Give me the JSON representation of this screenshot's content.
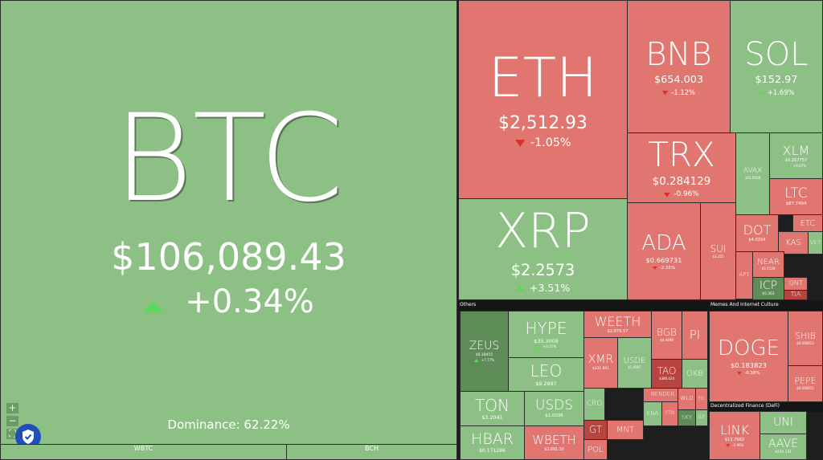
{
  "btc": {
    "name": "BTC",
    "price": "$106,089.43",
    "change": "+0.34%",
    "dominance": "Dominance: 62.22%",
    "color": "#8dc084"
  },
  "btc_strip": [
    {
      "name": "WBTC",
      "color": "#8dc084"
    },
    {
      "name": "BCH",
      "color": "#8dc084"
    }
  ],
  "sections": [
    "Others",
    "Memes And Internet Culture",
    "Decentralized Finance (DeFi)"
  ],
  "tiles": [
    {
      "name": "ETH",
      "price": "$2,512.93",
      "change": "-1.05%",
      "color": "#e0766f"
    },
    {
      "name": "XRP",
      "price": "$2.2573",
      "change": "+3.51%",
      "color": "#8dc084"
    },
    {
      "name": "BNB",
      "price": "$654.003",
      "change": "-1.12%",
      "color": "#e0766f"
    },
    {
      "name": "SOL",
      "price": "$152.97",
      "change": "+1.69%",
      "color": "#8dc084"
    },
    {
      "name": "TRX",
      "price": "$0.284129",
      "change": "-0.96%",
      "color": "#e0766f"
    },
    {
      "name": "AVAX",
      "price": "$21.0558",
      "color": "#8dc084"
    },
    {
      "name": "XLM",
      "price": "$0.267757",
      "change": "+4.07%",
      "color": "#8dc084"
    },
    {
      "name": "LTC",
      "price": "$87.7494",
      "color": "#e0766f"
    },
    {
      "name": "ADA",
      "price": "$0.669731",
      "change": "-2.35%",
      "color": "#e0766f"
    },
    {
      "name": "SUI",
      "price": "$3.252",
      "color": "#e0766f"
    },
    {
      "name": "DOT",
      "price": "$4.0324",
      "color": "#e0766f"
    },
    {
      "name": "ETC",
      "color": "#e0766f"
    },
    {
      "name": "KAS",
      "color": "#e0766f"
    },
    {
      "name": "VET",
      "color": "#8dc084"
    },
    {
      "name": "APT",
      "color": "#e0766f"
    },
    {
      "name": "NEAR",
      "price": "$2.4139",
      "color": "#e0766f"
    },
    {
      "name": "ICP",
      "price": "$5.361",
      "color": "#5e8c57"
    },
    {
      "name": "QNT",
      "color": "#e0766f"
    },
    {
      "name": "TIA",
      "color": "#b8443f"
    },
    {
      "name": "ZEUS",
      "price": "$0.18415",
      "change": "+7.77%",
      "color": "#5e8c57"
    },
    {
      "name": "HYPE",
      "price": "$35.3009",
      "change": "+3.15%",
      "color": "#8dc084"
    },
    {
      "name": "LEO",
      "price": "$9.2897",
      "color": "#8dc084"
    },
    {
      "name": "TON",
      "price": "$3.2041",
      "color": "#8dc084"
    },
    {
      "name": "USDS",
      "price": "$1.0036",
      "color": "#8dc084"
    },
    {
      "name": "HBAR",
      "price": "$0.171286",
      "color": "#8dc084"
    },
    {
      "name": "WBETH",
      "price": "$2,691.30",
      "color": "#e0766f"
    },
    {
      "name": "WEETH",
      "price": "$2,679.57",
      "color": "#e0766f"
    },
    {
      "name": "XMR",
      "price": "$331.991",
      "color": "#e0766f"
    },
    {
      "name": "USDE",
      "price": "$1.0007",
      "color": "#8dc084"
    },
    {
      "name": "BGB",
      "price": "$4.4488",
      "color": "#e0766f"
    },
    {
      "name": "PI",
      "color": "#e0766f"
    },
    {
      "name": "TAO",
      "price": "$386.424",
      "color": "#b8443f"
    },
    {
      "name": "OKB",
      "color": "#8dc084"
    },
    {
      "name": "CRO",
      "color": "#8dc084"
    },
    {
      "name": "GT",
      "color": "#b8443f"
    },
    {
      "name": "POL",
      "color": "#e0766f"
    },
    {
      "name": "MNT",
      "color": "#e0766f"
    },
    {
      "name": "RENDER",
      "color": "#e0766f"
    },
    {
      "name": "ENA",
      "color": "#8dc084"
    },
    {
      "name": "FTN",
      "color": "#e0766f"
    },
    {
      "name": "WLD",
      "color": "#e0766f"
    },
    {
      "name": "FIL",
      "color": "#e0766f"
    },
    {
      "name": "SKY",
      "color": "#5e8c57"
    },
    {
      "name": "JLP",
      "color": "#8dc084"
    },
    {
      "name": "DOGE",
      "price": "$0.183823",
      "change": "-0.38%",
      "color": "#e0766f"
    },
    {
      "name": "SHIB",
      "price": "$0.000013",
      "color": "#e0766f"
    },
    {
      "name": "PEPE",
      "price": "$0.000011",
      "color": "#e0766f"
    },
    {
      "name": "LINK",
      "price": "$13.7982",
      "change": "-1.96%",
      "color": "#e0766f"
    },
    {
      "name": "UNI",
      "color": "#8dc084"
    },
    {
      "name": "AAVE",
      "price": "$255.131",
      "color": "#8dc084"
    }
  ]
}
